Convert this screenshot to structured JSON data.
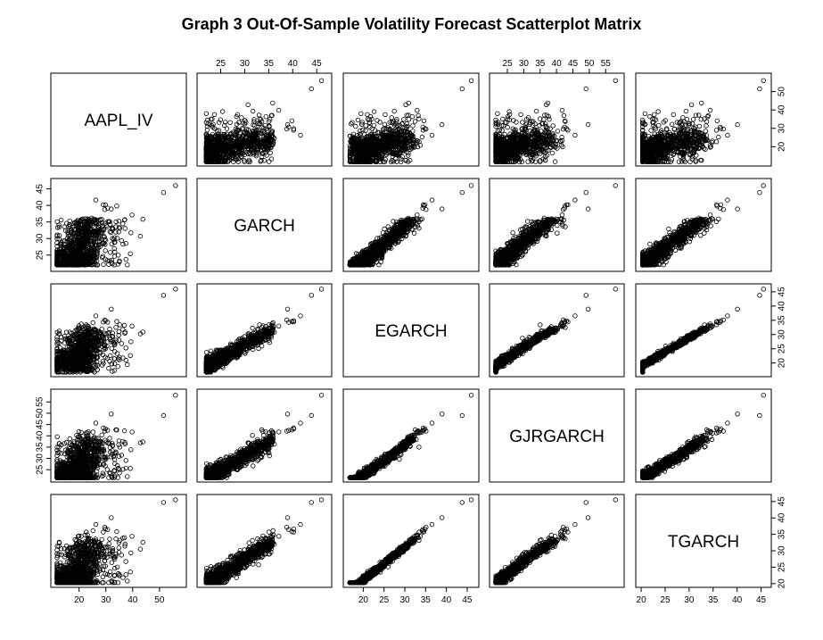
{
  "chart_data": {
    "type": "scatter",
    "title": "Graph 3 Out-Of-Sample Volatility Forecast Scatterplot Matrix",
    "variables": [
      {
        "name": "AAPL_IV",
        "range": [
          11.5,
          58
        ],
        "ticks": [
          20,
          30,
          40,
          50
        ]
      },
      {
        "name": "GARCH",
        "range": [
          21.2,
          47
        ],
        "ticks": [
          25,
          30,
          35,
          40,
          45
        ]
      },
      {
        "name": "EGARCH",
        "range": [
          16.5,
          46.5
        ],
        "ticks": [
          20,
          25,
          30,
          35,
          40,
          45
        ]
      },
      {
        "name": "GJRGARCH",
        "range": [
          21.2,
          59
        ],
        "ticks": [
          25,
          30,
          35,
          40,
          45,
          50,
          55
        ]
      },
      {
        "name": "TGARCH",
        "range": [
          20,
          46
        ],
        "ticks": [
          20,
          25,
          30,
          35,
          40,
          45
        ]
      }
    ],
    "tick_labels": {
      "AAPL_IV": [
        "20",
        "30",
        "40",
        "50"
      ],
      "GARCH": [
        "25",
        "30",
        "35",
        "40",
        "45"
      ],
      "EGARCH": [
        "20",
        "25",
        "30",
        "35",
        "40",
        "45"
      ],
      "GJRGARCH": [
        "25",
        "30",
        "35",
        "40",
        "45",
        "50",
        "55"
      ],
      "TGARCH": [
        "20",
        "25",
        "30",
        "35",
        "40",
        "45"
      ]
    },
    "top_axis_panels": [
      "GARCH",
      "GJRGARCH"
    ],
    "bottom_axis_panels": [
      "AAPL_IV",
      "EGARCH",
      "TGARCH"
    ],
    "left_axis_panels": [
      "GARCH",
      "GJRGARCH"
    ],
    "right_axis_panels": [
      "AAPL_IV",
      "EGARCH",
      "TGARCH"
    ],
    "marker": "open-circle",
    "marker_color": "#000000",
    "n_points": 1000,
    "sample_points": [
      {
        "AAPL_IV": 22.0,
        "GARCH": 23.4,
        "EGARCH": 20.1,
        "GJRGARCH": 23.8,
        "TGARCH": 21.6
      },
      {
        "AAPL_IV": 25.5,
        "GARCH": 26.8,
        "EGARCH": 25.2,
        "GJRGARCH": 26.5,
        "TGARCH": 25.4
      },
      {
        "AAPL_IV": 30.0,
        "GARCH": 29.5,
        "EGARCH": 28.7,
        "GJRGARCH": 29.6,
        "TGARCH": 28.9
      },
      {
        "AAPL_IV": 35.2,
        "GARCH": 33.1,
        "EGARCH": 33.4,
        "GJRGARCH": 35.0,
        "TGARCH": 33.2
      },
      {
        "AAPL_IV": 51.5,
        "GARCH": 43.9,
        "EGARCH": 43.8,
        "GJRGARCH": 49.0,
        "TGARCH": 44.7
      },
      {
        "AAPL_IV": 56.0,
        "GARCH": 46.0,
        "EGARCH": 46.0,
        "GJRGARCH": 58.0,
        "TGARCH": 45.5
      }
    ],
    "grid": false,
    "legend": "none"
  }
}
